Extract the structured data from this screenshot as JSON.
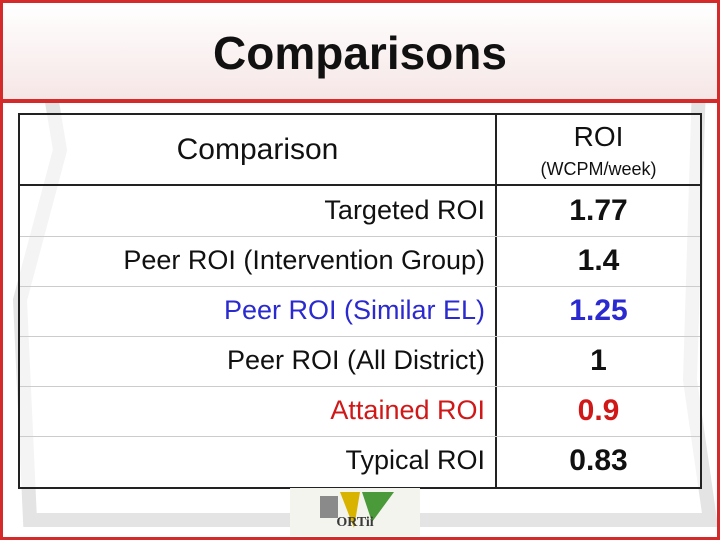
{
  "header": {
    "title": "Comparisons"
  },
  "table": {
    "columns": [
      "Comparison",
      "ROI",
      "(WCPM/week)"
    ],
    "rows": [
      [
        "Targeted ROI",
        "1.77"
      ],
      [
        "Peer ROI (Intervention Group)",
        "1.4"
      ],
      [
        "Peer ROI (Similar EL)",
        "1.25"
      ],
      [
        "Peer ROI (All District)",
        "1"
      ],
      [
        "Attained ROI",
        "0.9"
      ],
      [
        "Typical ROI",
        "0.83"
      ]
    ]
  },
  "logo": {
    "text": "ORTii"
  }
}
